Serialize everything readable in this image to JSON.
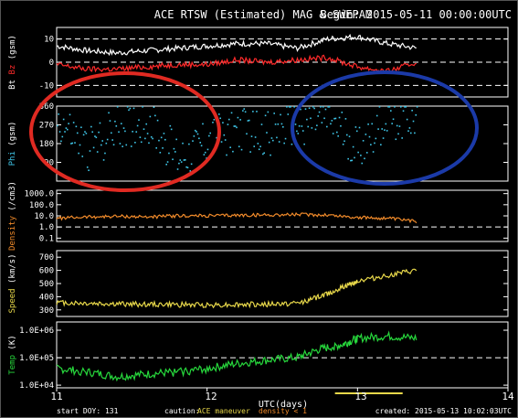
{
  "header": {
    "title": "ACE RTSW (Estimated) MAG & SWEPAM",
    "begin": "Begin: 2015-05-11 00:00:00UTC"
  },
  "footer": {
    "start_doy": "start DOY: 131",
    "caution_label": "caution:",
    "caution_maneuver": "ACE maneuver",
    "caution_density": "density < 1",
    "created": "created: 2015-05-13 10:02:03UTC"
  },
  "annotations": [
    {
      "shape": "ellipse",
      "color": "#e02a22",
      "label": "red-circle"
    },
    {
      "shape": "ellipse",
      "color": "#1b3aa8",
      "label": "blue-circle"
    }
  ],
  "colors": {
    "bt": "#ffffff",
    "bz": "#ff2a2a",
    "phi": "#3fc6e8",
    "density": "#f08a2a",
    "speed": "#e8d84a",
    "temp": "#27d83c",
    "maneuver_bar": "#e8d84a"
  },
  "chart_data": {
    "type": "scatter",
    "xlabel": "UTC(days)",
    "x_ticks": [
      "11",
      "12",
      "13",
      "14"
    ],
    "xlim": [
      11,
      14
    ],
    "panels": [
      {
        "id": "mag",
        "ylabel_parts": [
          {
            "text": "Bt",
            "color": "#ffffff"
          },
          {
            "text": "Bz",
            "color": "#ff2a2a"
          },
          {
            "text": "(gsm)",
            "color": "#ffffff"
          }
        ],
        "ylim": [
          -15,
          15
        ],
        "scale": "linear",
        "ticks": [
          "10",
          "0",
          "-10"
        ],
        "dashed": [
          10,
          0,
          -10
        ],
        "series": [
          {
            "name": "Bt",
            "color": "#ffffff",
            "x": [
              11.0,
              11.2,
              11.4,
              11.6,
              11.8,
              12.0,
              12.2,
              12.4,
              12.6,
              12.8,
              13.0,
              13.2,
              13.4
            ],
            "y": [
              7,
              5,
              4,
              5,
              6,
              7,
              8,
              8,
              6,
              10,
              11,
              8,
              6
            ]
          },
          {
            "name": "Bz",
            "color": "#ff2a2a",
            "x": [
              11.0,
              11.2,
              11.4,
              11.6,
              11.8,
              12.0,
              12.2,
              12.4,
              12.6,
              12.8,
              13.0,
              13.2,
              13.4
            ],
            "y": [
              -1,
              -3,
              -3,
              -2,
              -1,
              -1,
              1,
              0,
              1,
              2,
              -2,
              -4,
              0
            ]
          }
        ]
      },
      {
        "id": "phi",
        "ylabel_parts": [
          {
            "text": "Phi",
            "color": "#3fc6e8"
          },
          {
            "text": "(gsm)",
            "color": "#ffffff"
          }
        ],
        "ylim": [
          0,
          360
        ],
        "scale": "linear",
        "ticks": [
          "360",
          "270",
          "180",
          "90"
        ],
        "dashed": [],
        "series": [
          {
            "name": "Phi",
            "color": "#3fc6e8",
            "x": [
              11.0,
              11.2,
              11.4,
              11.6,
              11.8,
              12.0,
              12.2,
              12.4,
              12.6,
              12.8,
              13.0,
              13.2,
              13.4
            ],
            "y": [
              300,
              150,
              260,
              290,
              120,
              200,
              250,
              230,
              280,
              300,
              160,
              310,
              315
            ]
          }
        ]
      },
      {
        "id": "density",
        "ylabel_parts": [
          {
            "text": "Density",
            "color": "#f08a2a"
          },
          {
            "text": "(/cm3)",
            "color": "#ffffff"
          }
        ],
        "ylim": [
          0.05,
          2000
        ],
        "scale": "log",
        "ticks": [
          "1000.0",
          "100.0",
          "10.0",
          "1.0",
          "0.1"
        ],
        "dashed": [
          1
        ],
        "series": [
          {
            "name": "Density",
            "color": "#f08a2a",
            "x": [
              11.0,
              11.2,
              11.4,
              11.6,
              11.8,
              12.0,
              12.2,
              12.4,
              12.6,
              12.8,
              13.0,
              13.2,
              13.4
            ],
            "y": [
              6,
              8,
              9,
              8,
              10,
              10,
              11,
              12,
              13,
              12,
              7,
              6,
              3
            ]
          }
        ]
      },
      {
        "id": "speed",
        "ylabel_parts": [
          {
            "text": "Speed",
            "color": "#e8d84a"
          },
          {
            "text": "(km/s)",
            "color": "#ffffff"
          }
        ],
        "ylim": [
          250,
          750
        ],
        "scale": "linear",
        "ticks": [
          "700",
          "600",
          "500",
          "400",
          "300"
        ],
        "dashed": [],
        "series": [
          {
            "name": "Speed",
            "color": "#e8d84a",
            "x": [
              11.0,
              11.2,
              11.4,
              11.6,
              11.8,
              12.0,
              12.2,
              12.4,
              12.6,
              12.75,
              12.9,
              13.0,
              13.2,
              13.4
            ],
            "y": [
              355,
              350,
              345,
              342,
              340,
              338,
              340,
              342,
              350,
              400,
              470,
              520,
              560,
              600
            ]
          }
        ]
      },
      {
        "id": "temp",
        "ylabel_parts": [
          {
            "text": "Temp",
            "color": "#27d83c"
          },
          {
            "text": "(K)",
            "color": "#ffffff"
          }
        ],
        "ylim": [
          8000,
          2000000
        ],
        "scale": "log",
        "ticks": [
          "1.0E+06",
          "1.0E+05",
          "1.0E+04"
        ],
        "dashed": [
          100000
        ],
        "series": [
          {
            "name": "Temp",
            "color": "#27d83c",
            "x": [
              11.0,
              11.2,
              11.4,
              11.6,
              11.8,
              12.0,
              12.2,
              12.4,
              12.6,
              12.75,
              12.9,
              13.0,
              13.2,
              13.4
            ],
            "y": [
              40000,
              30000,
              20000,
              25000,
              30000,
              40000,
              60000,
              80000,
              100000,
              200000,
              300000,
              500000,
              600000,
              500000
            ]
          }
        ]
      }
    ],
    "maneuver_bar": {
      "x_start": 12.85,
      "x_end": 13.3
    }
  }
}
